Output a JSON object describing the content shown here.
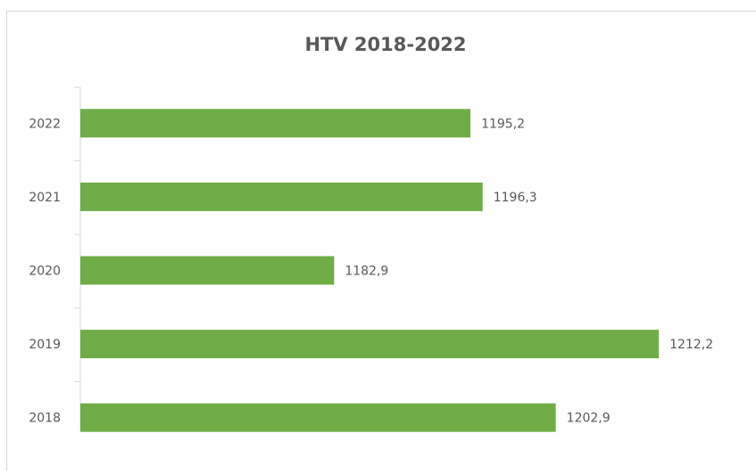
{
  "chart_data": {
    "type": "bar",
    "orientation": "horizontal",
    "title": "HTV 2018-2022",
    "categories": [
      "2022",
      "2021",
      "2020",
      "2019",
      "2018"
    ],
    "values": [
      1195.2,
      1196.3,
      1182.9,
      1212.2,
      1202.9
    ],
    "value_labels": [
      "1195,2",
      "1196,3",
      "1182,9",
      "1212,2",
      "1202,9"
    ],
    "color": "#70ad47",
    "xlim": [
      1160,
      1220
    ],
    "grid": false
  }
}
